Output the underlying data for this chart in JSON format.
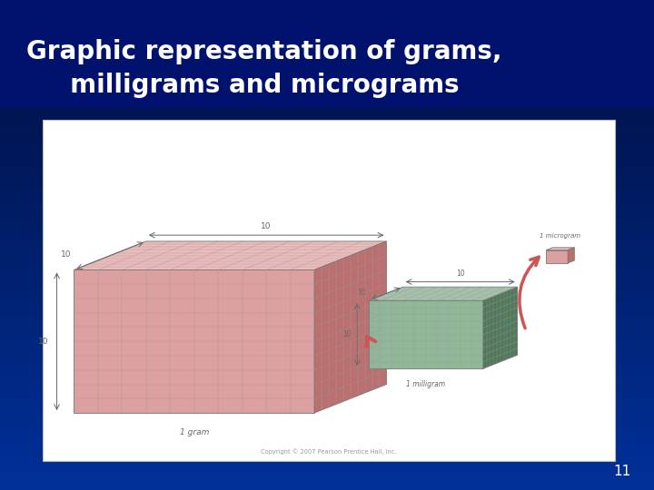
{
  "title_line1": "Graphic representation of grams,",
  "title_line2": "  milligrams and micrograms",
  "slide_number": "11",
  "bg_color_dark": "#000d3d",
  "bg_color_mid": "#0033aa",
  "title_color": "#ffffff",
  "title_fontsize": 20,
  "slide_num_color": "#ffffff",
  "slide_num_fontsize": 11,
  "image_bg": "#ffffff",
  "large_cube_color_face": "#dda0a0",
  "large_cube_color_top": "#eebbbb",
  "large_cube_color_side": "#bb7070",
  "small_cube_color_face": "#90b898",
  "small_cube_color_top": "#a8ccb0",
  "small_cube_color_side": "#507858",
  "tiny_cube_color_face": "#dda0a0",
  "tiny_cube_color_top": "#eebbbb",
  "tiny_cube_color_side": "#bb7070",
  "arrow_color": "#cc5555",
  "ann_color": "#666666",
  "copyright_text": "Copyright © 2007 Pearson Prentice Hall, Inc.",
  "label_1gram": "1 gram",
  "label_1mg": "1 milligram",
  "label_1ug": "1 microgram"
}
